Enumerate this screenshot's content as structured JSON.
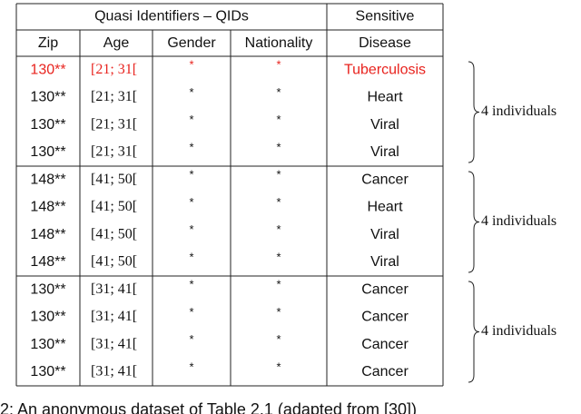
{
  "table": {
    "group_headers": [
      "Quasi Identifiers – QIDs",
      "Sensitive"
    ],
    "columns": [
      "Zip",
      "Age",
      "Gender",
      "Nationality",
      "Disease"
    ],
    "rows": [
      [
        "130**",
        "[21; 31[",
        "*",
        "*",
        "Tuberculosis"
      ],
      [
        "130**",
        "[21; 31[",
        "*",
        "*",
        "Heart"
      ],
      [
        "130**",
        "[21; 31[",
        "*",
        "*",
        "Viral"
      ],
      [
        "130**",
        "[21; 31[",
        "*",
        "*",
        "Viral"
      ],
      [
        "148**",
        "[41; 50[",
        "*",
        "*",
        "Cancer"
      ],
      [
        "148**",
        "[41; 50[",
        "*",
        "*",
        "Heart"
      ],
      [
        "148**",
        "[41; 50[",
        "*",
        "*",
        "Viral"
      ],
      [
        "148**",
        "[41; 50[",
        "*",
        "*",
        "Viral"
      ],
      [
        "130**",
        "[31; 41[",
        "*",
        "*",
        "Cancer"
      ],
      [
        "130**",
        "[31; 41[",
        "*",
        "*",
        "Cancer"
      ],
      [
        "130**",
        "[31; 41[",
        "*",
        "*",
        "Cancer"
      ],
      [
        "130**",
        "[31; 41[",
        "*",
        "*",
        "Cancer"
      ]
    ],
    "group_labels": [
      "4 individuals",
      "4 individuals",
      "4 individuals"
    ]
  },
  "caption": "2: An anonymous dataset of Table 2.1 (adapted from [30])"
}
